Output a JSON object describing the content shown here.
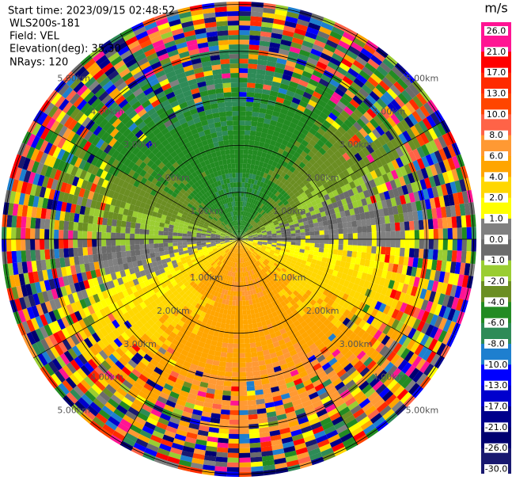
{
  "header": {
    "start_time": "Start time: 2023/09/15 02:48:52",
    "instrument": "WLS200s-181",
    "field": "Field: VEL",
    "elevation": "Elevation(deg): 35.30",
    "nrays": "NRays: 120"
  },
  "chart_data": {
    "type": "ppi",
    "unit": "m/s",
    "range_rings": [
      {
        "value": 1,
        "label": "1.00km"
      },
      {
        "value": 2,
        "label": "2.00km"
      },
      {
        "value": 3,
        "label": "3.00km"
      },
      {
        "value": 4,
        "label": "4.00km"
      },
      {
        "value": 5,
        "label": "5.00km"
      }
    ],
    "colorbar": {
      "ticks": [
        {
          "value": 26,
          "label": "26.0"
        },
        {
          "value": 21,
          "label": "21.0"
        },
        {
          "value": 17,
          "label": "17.0"
        },
        {
          "value": 13,
          "label": "13.0"
        },
        {
          "value": 10,
          "label": "10.0"
        },
        {
          "value": 8,
          "label": "8.0"
        },
        {
          "value": 6,
          "label": "6.0"
        },
        {
          "value": 4,
          "label": "4.0"
        },
        {
          "value": 2,
          "label": "2.0"
        },
        {
          "value": 1,
          "label": "1.0"
        },
        {
          "value": 0,
          "label": "0.0"
        },
        {
          "value": -1,
          "label": "-1.0"
        },
        {
          "value": -2,
          "label": "-2.0"
        },
        {
          "value": -4,
          "label": "-4.0"
        },
        {
          "value": -6,
          "label": "-6.0"
        },
        {
          "value": -8,
          "label": "-8.0"
        },
        {
          "value": -10,
          "label": "-10.0"
        },
        {
          "value": -13,
          "label": "-13.0"
        },
        {
          "value": -17,
          "label": "-17.0"
        },
        {
          "value": -21,
          "label": "-21.0"
        },
        {
          "value": -26,
          "label": "-26.0"
        },
        {
          "value": -30,
          "label": "-30.0"
        }
      ],
      "colors": [
        "#ff1493",
        "#ff0000",
        "#ff2a00",
        "#ff4500",
        "#ff6347",
        "#ff9933",
        "#ffa500",
        "#ffd700",
        "#ffff00",
        "#808080",
        "#6b6b6b",
        "#9acd32",
        "#6b8e23",
        "#228b22",
        "#2e8b57",
        "#1e7fcf",
        "#0000ff",
        "#0000cd",
        "#00008b",
        "#000070",
        "#191970"
      ]
    }
  }
}
